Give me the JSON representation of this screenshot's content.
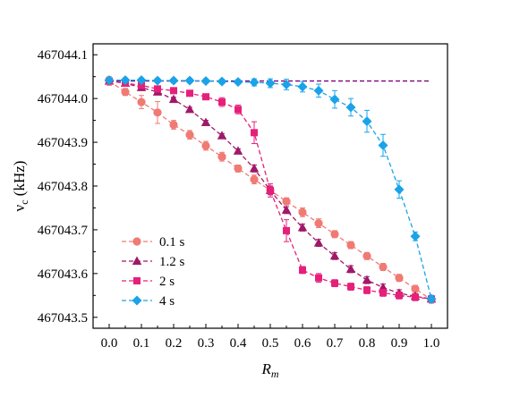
{
  "chart_data": {
    "type": "line",
    "xlabel": "R",
    "xlabel_sub": "m",
    "ylabel": "ν",
    "ylabel_sub": "c",
    "ylabel_unit": " (kHz)",
    "xlim": [
      -0.05,
      1.05
    ],
    "ylim": [
      467043.475,
      467044.125
    ],
    "x_ticks": [
      0.0,
      0.1,
      0.2,
      0.3,
      0.4,
      0.5,
      0.6,
      0.7,
      0.8,
      0.9,
      1.0
    ],
    "x_tick_labels": [
      "0.0",
      "0.1",
      "0.2",
      "0.3",
      "0.4",
      "0.5",
      "0.6",
      "0.7",
      "0.8",
      "0.9",
      "1.0"
    ],
    "y_ticks": [
      467043.5,
      467043.6,
      467043.7,
      467043.8,
      467043.9,
      467044.0,
      467044.1
    ],
    "y_tick_labels": [
      "467043.5",
      "467043.6",
      "467043.7",
      "467043.8",
      "467043.9",
      "467044.0",
      "467044.1"
    ],
    "grid": false,
    "legend_position": "bottom-left",
    "reference_line": {
      "y": 467044.04,
      "x_range": [
        0.0,
        1.0
      ],
      "color": "#800080"
    },
    "series": [
      {
        "name": "0.1 s",
        "marker": "circle",
        "color": "#f07a74",
        "x": [
          0.0,
          0.05,
          0.1,
          0.15,
          0.2,
          0.25,
          0.3,
          0.35,
          0.4,
          0.45,
          0.5,
          0.55,
          0.6,
          0.65,
          0.7,
          0.75,
          0.8,
          0.85,
          0.9,
          0.95,
          1.0
        ],
        "y": [
          467044.04,
          467044.015,
          467043.992,
          467043.968,
          467043.94,
          467043.917,
          467043.892,
          467043.867,
          467043.84,
          467043.815,
          467043.79,
          467043.765,
          467043.74,
          467043.715,
          467043.69,
          467043.665,
          467043.64,
          467043.615,
          467043.59,
          467043.565,
          467043.54
        ],
        "err": [
          0.01,
          0.008,
          0.015,
          0.025,
          0.01,
          0.01,
          0.01,
          0.01,
          0.008,
          0.01,
          0.008,
          0.008,
          0.01,
          0.01,
          0.008,
          0.008,
          0.008,
          0.008,
          0.008,
          0.008,
          0.008
        ]
      },
      {
        "name": "1.2 s",
        "marker": "triangle",
        "color": "#a0186a",
        "x": [
          0.0,
          0.05,
          0.1,
          0.15,
          0.2,
          0.25,
          0.3,
          0.35,
          0.4,
          0.45,
          0.5,
          0.55,
          0.6,
          0.65,
          0.7,
          0.75,
          0.8,
          0.85,
          0.9,
          0.95,
          1.0
        ],
        "y": [
          467044.04,
          467044.035,
          467044.025,
          467044.015,
          467043.998,
          467043.975,
          467043.945,
          467043.915,
          467043.88,
          467043.84,
          467043.79,
          467043.745,
          467043.705,
          467043.67,
          467043.64,
          467043.61,
          467043.585,
          467043.568,
          467043.555,
          467043.548,
          467043.542
        ],
        "err": [
          0.005,
          0.005,
          0.005,
          0.005,
          0.005,
          0.005,
          0.005,
          0.005,
          0.005,
          0.008,
          0.01,
          0.008,
          0.008,
          0.008,
          0.008,
          0.008,
          0.008,
          0.008,
          0.008,
          0.005,
          0.005
        ]
      },
      {
        "name": "2 s",
        "marker": "square",
        "color": "#e6207a",
        "x": [
          0.0,
          0.05,
          0.1,
          0.15,
          0.2,
          0.25,
          0.3,
          0.35,
          0.4,
          0.45,
          0.5,
          0.55,
          0.6,
          0.65,
          0.7,
          0.75,
          0.8,
          0.85,
          0.9,
          0.95,
          1.0
        ],
        "y": [
          467044.04,
          467044.035,
          467044.03,
          467044.022,
          467044.018,
          467044.012,
          467044.004,
          467043.992,
          467043.975,
          467043.922,
          467043.79,
          467043.698,
          467043.608,
          467043.59,
          467043.578,
          467043.57,
          467043.562,
          467043.556,
          467043.55,
          467043.546,
          467043.542
        ],
        "err": [
          0.005,
          0.005,
          0.005,
          0.005,
          0.005,
          0.005,
          0.005,
          0.01,
          0.01,
          0.025,
          0.015,
          0.025,
          0.008,
          0.01,
          0.008,
          0.008,
          0.008,
          0.008,
          0.008,
          0.008,
          0.008
        ]
      },
      {
        "name": "4 s",
        "marker": "diamond",
        "color": "#1aa3e8",
        "x": [
          0.0,
          0.05,
          0.1,
          0.15,
          0.2,
          0.25,
          0.3,
          0.35,
          0.4,
          0.45,
          0.5,
          0.55,
          0.6,
          0.65,
          0.7,
          0.75,
          0.8,
          0.85,
          0.9,
          0.95,
          1.0
        ],
        "y": [
          467044.042,
          467044.042,
          467044.042,
          467044.041,
          467044.041,
          467044.041,
          467044.04,
          467044.039,
          467044.038,
          467044.037,
          467044.035,
          467044.032,
          467044.027,
          467044.018,
          467043.998,
          467043.98,
          467043.948,
          467043.893,
          467043.792,
          467043.685,
          467043.542
        ],
        "err": [
          0.005,
          0.005,
          0.005,
          0.005,
          0.005,
          0.005,
          0.005,
          0.005,
          0.005,
          0.008,
          0.01,
          0.012,
          0.012,
          0.015,
          0.02,
          0.02,
          0.025,
          0.025,
          0.02,
          0.01,
          0.008
        ]
      }
    ]
  }
}
